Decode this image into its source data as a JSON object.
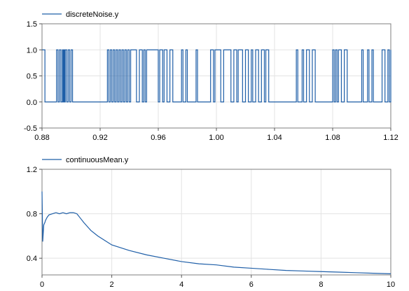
{
  "chart_data": [
    {
      "type": "line",
      "title": "",
      "xlabel": "",
      "ylabel": "",
      "legend": "top-left",
      "grid": true,
      "xlim": [
        0.88,
        1.12
      ],
      "ylim": [
        -0.5,
        1.5
      ],
      "x_ticks": [
        "0.88",
        "0.92",
        "0.96",
        "1.00",
        "1.04",
        "1.08",
        "1.12"
      ],
      "y_ticks": [
        "-0.5",
        "0.0",
        "0.5",
        "1.0",
        "1.5"
      ],
      "series": [
        {
          "name": "discreteNoise.y",
          "color": "#1f5fa8",
          "step": true,
          "x": [
            0.88,
            0.882,
            0.89,
            0.891,
            0.892,
            0.893,
            0.894,
            0.8945,
            0.895,
            0.8955,
            0.896,
            0.897,
            0.898,
            0.899,
            0.9,
            0.901,
            0.925,
            0.926,
            0.927,
            0.928,
            0.929,
            0.93,
            0.931,
            0.932,
            0.933,
            0.934,
            0.935,
            0.936,
            0.937,
            0.938,
            0.939,
            0.94,
            0.941,
            0.945,
            0.947,
            0.949,
            0.95,
            0.951,
            0.952,
            0.96,
            0.961,
            0.963,
            0.964,
            0.966,
            0.968,
            0.97,
            0.976,
            0.977,
            0.979,
            0.98,
            0.986,
            0.987,
            0.996,
            0.998,
            0.999,
            1.003,
            1.005,
            1.01,
            1.012,
            1.014,
            1.015,
            1.018,
            1.02,
            1.022,
            1.024,
            1.025,
            1.027,
            1.029,
            1.031,
            1.033,
            1.034,
            1.036,
            1.055,
            1.056,
            1.059,
            1.06,
            1.062,
            1.064,
            1.066,
            1.068,
            1.08,
            1.081,
            1.082,
            1.083,
            1.084,
            1.086,
            1.088,
            1.09,
            1.1,
            1.101,
            1.104,
            1.105,
            1.107,
            1.108,
            1.114,
            1.116,
            1.118,
            1.119,
            1.12
          ],
          "values": [
            1,
            0,
            1,
            0,
            1,
            0,
            1,
            0,
            1,
            0,
            1,
            0,
            1,
            0,
            1,
            0,
            1,
            0,
            1,
            0,
            1,
            0,
            1,
            0,
            1,
            0,
            1,
            0,
            1,
            0,
            1,
            0,
            1,
            0,
            1,
            0,
            1,
            0,
            1,
            0,
            1,
            0,
            1,
            0,
            1,
            0,
            1,
            0,
            1,
            0,
            1,
            0,
            1,
            0,
            1,
            0,
            1,
            0,
            1,
            0,
            1,
            0,
            1,
            0,
            1,
            0,
            1,
            0,
            1,
            0,
            1,
            0,
            1,
            0,
            1,
            0,
            1,
            0,
            1,
            0,
            1,
            0,
            1,
            0,
            1,
            0,
            1,
            0,
            1,
            0,
            1,
            0,
            1,
            0,
            1,
            0,
            1,
            0,
            1
          ]
        }
      ]
    },
    {
      "type": "line",
      "title": "",
      "xlabel": "",
      "ylabel": "",
      "legend": "top-left",
      "grid": true,
      "xlim": [
        0,
        10
      ],
      "ylim": [
        0.25,
        1.2
      ],
      "x_ticks": [
        "0",
        "2",
        "4",
        "6",
        "8",
        "10"
      ],
      "y_ticks": [
        "0.4",
        "0.8",
        "1.2"
      ],
      "series": [
        {
          "name": "continuousMean.y",
          "color": "#1f5fa8",
          "x": [
            0,
            0.02,
            0.05,
            0.08,
            0.1,
            0.15,
            0.2,
            0.3,
            0.4,
            0.5,
            0.6,
            0.7,
            0.8,
            0.9,
            1.0,
            1.1,
            1.2,
            1.4,
            1.6,
            1.8,
            2.0,
            2.5,
            3.0,
            3.5,
            4.0,
            4.5,
            5.0,
            5.5,
            6.0,
            6.5,
            7.0,
            7.5,
            8.0,
            8.5,
            9.0,
            9.5,
            10.0
          ],
          "values": [
            1.0,
            0.55,
            0.7,
            0.72,
            0.74,
            0.77,
            0.79,
            0.8,
            0.81,
            0.8,
            0.81,
            0.8,
            0.81,
            0.81,
            0.8,
            0.76,
            0.72,
            0.65,
            0.6,
            0.56,
            0.52,
            0.47,
            0.43,
            0.4,
            0.37,
            0.35,
            0.34,
            0.32,
            0.31,
            0.3,
            0.29,
            0.285,
            0.28,
            0.275,
            0.27,
            0.265,
            0.26
          ]
        }
      ]
    }
  ]
}
